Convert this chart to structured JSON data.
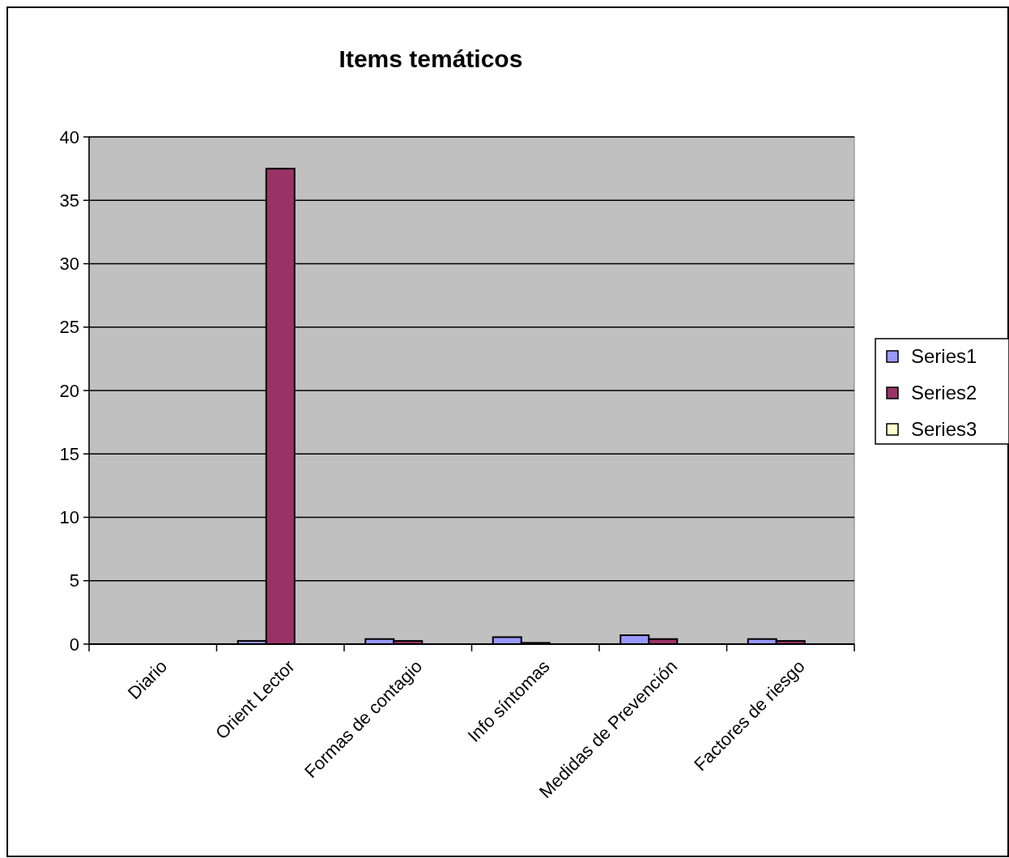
{
  "chart_data": {
    "type": "bar",
    "title": "Items temáticos",
    "categories": [
      "Diario",
      "Orient Lector",
      "Formas de contagio",
      "Info síntomas",
      "Medidas de Prevención",
      "Factores de riesgo"
    ],
    "series": [
      {
        "name": "Series1",
        "color": "#9999ff",
        "values": [
          0,
          0.25,
          0.4,
          0.55,
          0.7,
          0.4
        ]
      },
      {
        "name": "Series2",
        "color": "#993366",
        "values": [
          0,
          37.5,
          0.25,
          0.1,
          0.4,
          0.25
        ]
      },
      {
        "name": "Series3",
        "color": "#ffffcc",
        "values": [
          0,
          0,
          0,
          0,
          0,
          0
        ]
      }
    ],
    "ylim": [
      0,
      40
    ],
    "yticks": [
      0,
      5,
      10,
      15,
      20,
      25,
      30,
      35,
      40
    ],
    "grid": "y",
    "legend": "right"
  }
}
